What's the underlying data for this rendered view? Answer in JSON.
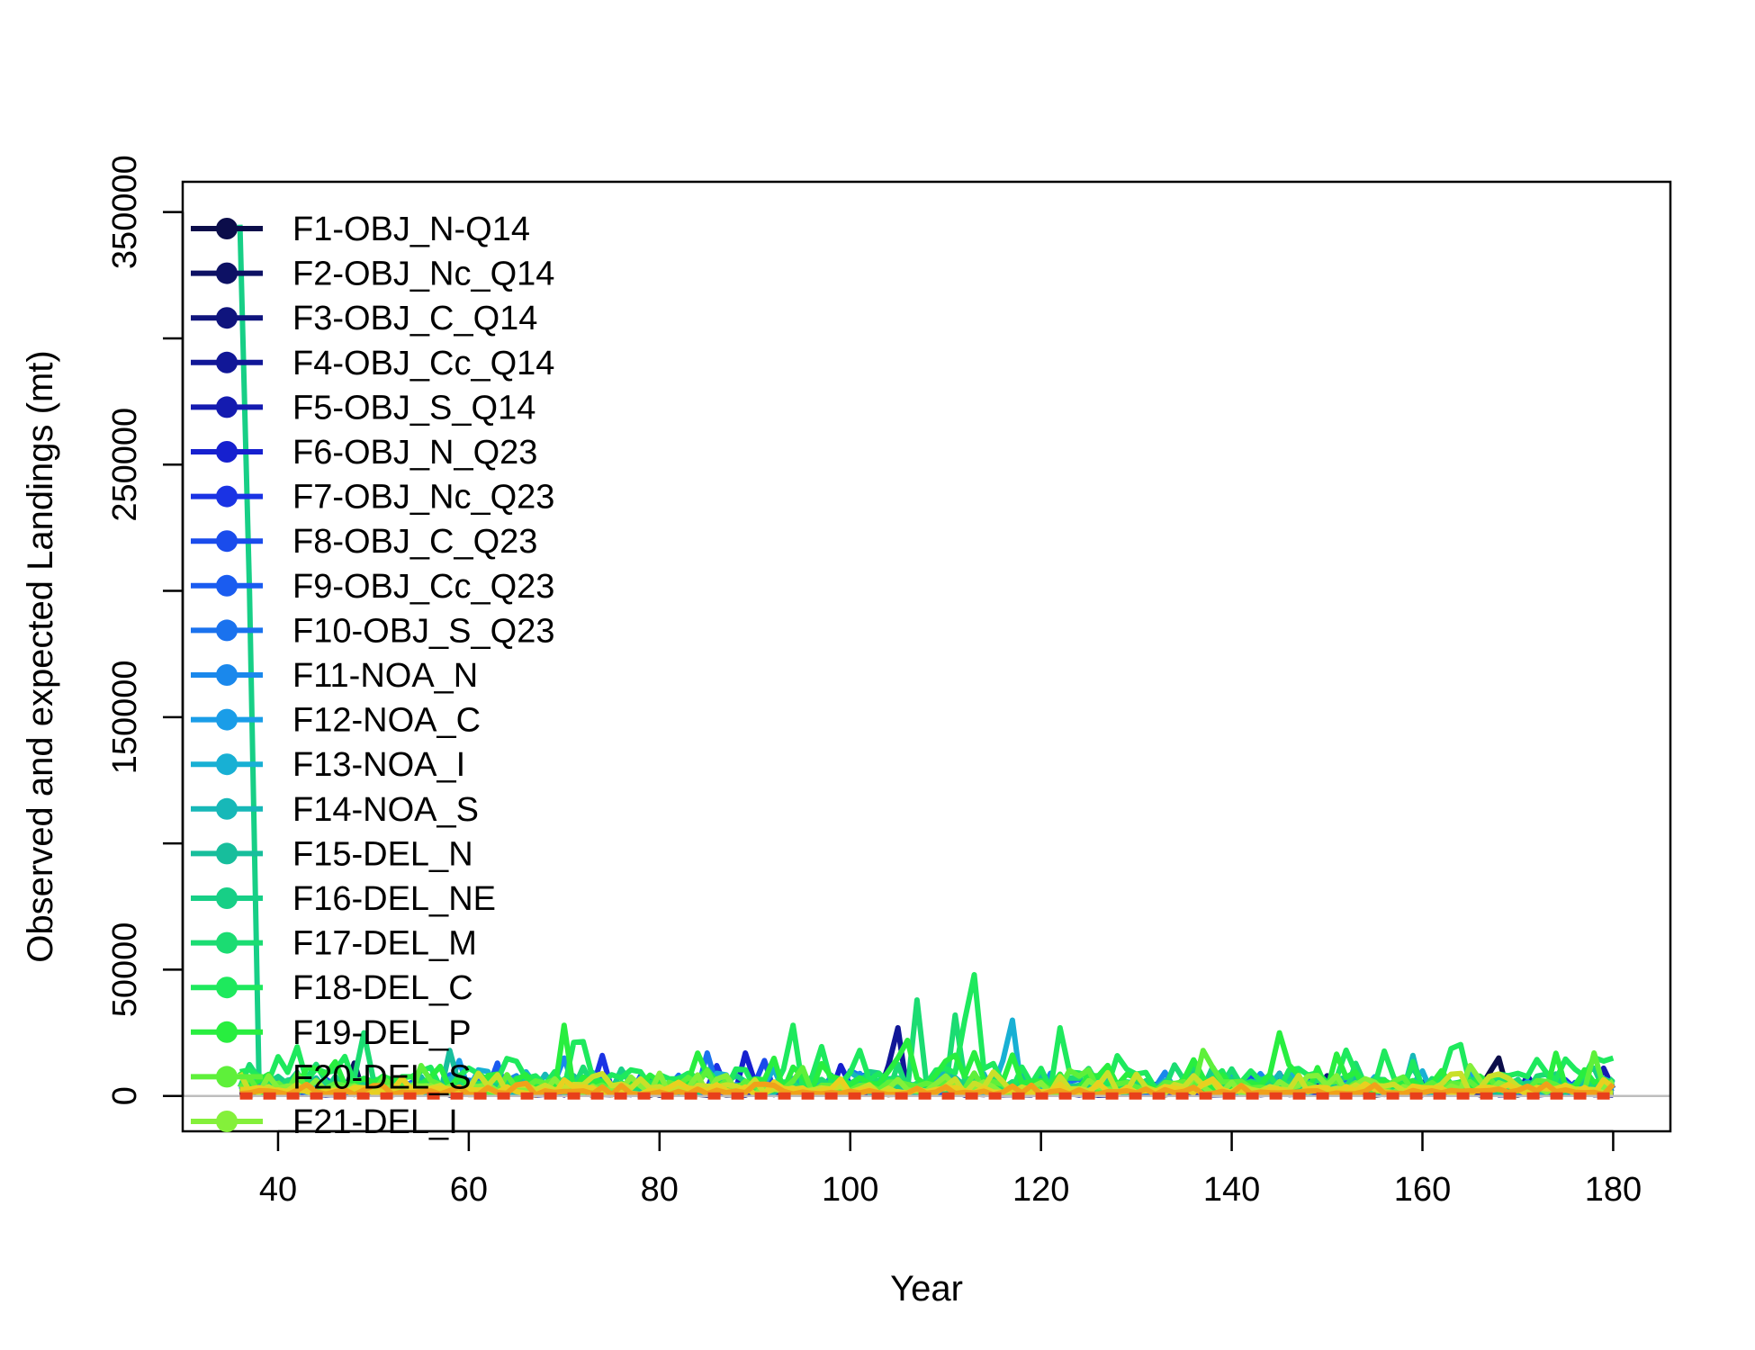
{
  "chart_data": {
    "type": "line",
    "xlabel": "Year",
    "ylabel": "Observed and expected Landings (mt)",
    "xlim": [
      30,
      186
    ],
    "ylim": [
      -14000,
      362000
    ],
    "x_ticks": [
      40,
      60,
      80,
      100,
      120,
      140,
      160,
      180
    ],
    "y_ticks": [
      0,
      50000,
      100000,
      150000,
      200000,
      250000,
      300000,
      350000
    ],
    "y_tick_labels": [
      "0",
      "50000",
      "",
      "150000",
      "",
      "250000",
      "",
      "350000"
    ],
    "grid": false,
    "legend_position": "top-left",
    "zero_line_color": "#bebebe",
    "x_range_data": [
      36,
      180
    ],
    "series": [
      {
        "name": "F1-OBJ_N-Q14",
        "color": "#0b0d4a",
        "base": 300,
        "amp": 1400,
        "spikes": [
          [
            168,
            15000
          ],
          [
            167,
            9000
          ]
        ]
      },
      {
        "name": "F2-OBJ_Nc_Q14",
        "color": "#0d1164",
        "base": 300,
        "amp": 1500,
        "spikes": [
          [
            48,
            13000
          ],
          [
            53,
            7000
          ]
        ]
      },
      {
        "name": "F3-OBJ_C_Q14",
        "color": "#0f147d",
        "base": 400,
        "amp": 1800,
        "spikes": [
          [
            145,
            9000
          ],
          [
            150,
            8000
          ]
        ]
      },
      {
        "name": "F4-OBJ_Cc_Q14",
        "color": "#111797",
        "base": 300,
        "amp": 1500,
        "spikes": [
          [
            105,
            27000
          ],
          [
            104,
            12000
          ]
        ]
      },
      {
        "name": "F5-OBJ_S_Q14",
        "color": "#141bb0",
        "base": 500,
        "amp": 2500,
        "spikes": [
          [
            171,
            8000
          ],
          [
            179,
            11000
          ]
        ]
      },
      {
        "name": "F6-OBJ_N_Q23",
        "color": "#1620cf",
        "base": 500,
        "amp": 2500,
        "spikes": [
          [
            89,
            17000
          ],
          [
            99,
            12000
          ]
        ]
      },
      {
        "name": "F7-OBJ_Nc_Q23",
        "color": "#1a33e4",
        "base": 600,
        "amp": 3000,
        "spikes": [
          [
            74,
            16000
          ],
          [
            86,
            12000
          ]
        ]
      },
      {
        "name": "F8-OBJ_C_Q23",
        "color": "#1a4cec",
        "base": 600,
        "amp": 3500,
        "spikes": [
          [
            91,
            14000
          ],
          [
            165,
            11000
          ]
        ]
      },
      {
        "name": "F9-OBJ_Cc_Q23",
        "color": "#1a5cf0",
        "base": 500,
        "amp": 3000,
        "spikes": [
          [
            63,
            13000
          ],
          [
            130,
            8000
          ]
        ]
      },
      {
        "name": "F10-OBJ_S_Q23",
        "color": "#1a72ee",
        "base": 700,
        "amp": 3500,
        "spikes": [
          [
            85,
            17000
          ],
          [
            100,
            10000
          ]
        ]
      },
      {
        "name": "F11-NOA_N",
        "color": "#1a88ec",
        "base": 800,
        "amp": 4000,
        "spikes": [
          [
            70,
            15000
          ],
          [
            121,
            9000
          ]
        ]
      },
      {
        "name": "F12-NOA_C",
        "color": "#1a9de8",
        "base": 700,
        "amp": 4000,
        "spikes": [
          [
            59,
            14000
          ],
          [
            95,
            10000
          ]
        ]
      },
      {
        "name": "F13-NOA_I",
        "color": "#18b0d4",
        "base": 800,
        "amp": 4500,
        "spikes": [
          [
            117,
            30000
          ],
          [
            116,
            14000
          ]
        ]
      },
      {
        "name": "F14-NOA_S",
        "color": "#17b8b8",
        "base": 700,
        "amp": 4000,
        "spikes": [
          [
            159,
            16000
          ],
          [
            110,
            12000
          ]
        ]
      },
      {
        "name": "F15-DEL_N",
        "color": "#17be9c",
        "base": 700,
        "amp": 3500,
        "spikes": [
          [
            58,
            18000
          ],
          [
            136,
            10000
          ]
        ]
      },
      {
        "name": "F16-DEL_NE",
        "color": "#17cf86",
        "base": 1000,
        "amp": 5000,
        "spikes": [
          [
            36,
            345000
          ],
          [
            37,
            200000
          ]
        ]
      },
      {
        "name": "F17-DEL_M",
        "color": "#1bdc72",
        "base": 1200,
        "amp": 6000,
        "spikes": [
          [
            107,
            38000
          ],
          [
            111,
            32000
          ],
          [
            49,
            25000
          ]
        ]
      },
      {
        "name": "F18-DEL_C",
        "color": "#1ee95d",
        "base": 2500,
        "amp": 9000,
        "spikes": [
          [
            113,
            48000
          ],
          [
            112,
            30000
          ],
          [
            94,
            28000
          ],
          [
            122,
            27000
          ]
        ]
      },
      {
        "name": "F19-DEL_P",
        "color": "#28ee3f",
        "base": 1800,
        "amp": 7000,
        "spikes": [
          [
            70,
            28000
          ],
          [
            145,
            25000
          ],
          [
            106,
            22000
          ]
        ]
      },
      {
        "name": "F20-DEL_S",
        "color": "#5ef03a",
        "base": 1200,
        "amp": 5000,
        "spikes": [
          [
            137,
            18000
          ],
          [
            178,
            17000
          ]
        ]
      },
      {
        "name": "F21-DEL_I",
        "color": "#84f03a",
        "base": 700,
        "amp": 3500,
        "spikes": [
          [
            165,
            12000
          ],
          [
            80,
            9000
          ]
        ]
      },
      {
        "name": "",
        "color": "#c9e02a",
        "base": 800,
        "amp": 4000,
        "spikes": [
          [
            61,
            9000
          ]
        ]
      },
      {
        "name": "",
        "color": "#e8d020",
        "base": 600,
        "amp": 3000,
        "spikes": [
          [
            53,
            7000
          ]
        ]
      },
      {
        "name": "",
        "color": "#f0a11a",
        "base": 400,
        "amp": 2000,
        "spikes": [
          [
            66,
            5000
          ]
        ]
      }
    ],
    "expected_series": {
      "color": "#e8401a",
      "value": 0
    }
  }
}
